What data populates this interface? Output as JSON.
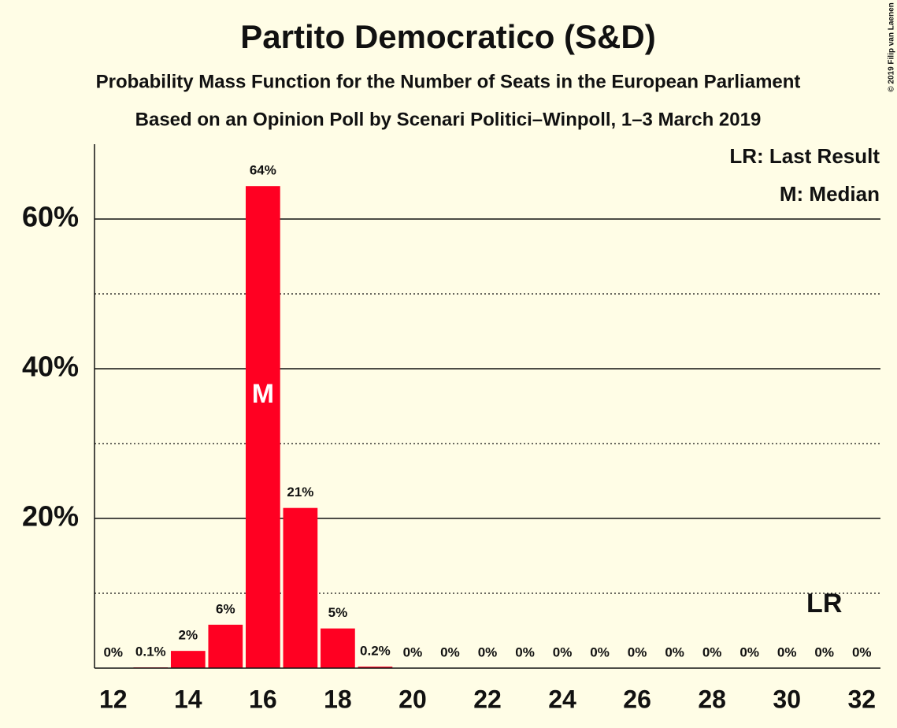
{
  "chart_data": {
    "type": "bar",
    "title": "Partito Democratico (S&D)",
    "subtitle": "Probability Mass Function for the Number of Seats in the European Parliament",
    "subtitle2": "Based on an Opinion Poll by Scenari Politici–Winpoll, 1–3 March 2019",
    "copyright": "© 2019 Filip van Laenen",
    "x": [
      12,
      13,
      14,
      15,
      16,
      17,
      18,
      19,
      20,
      21,
      22,
      23,
      24,
      25,
      26,
      27,
      28,
      29,
      30,
      31,
      32
    ],
    "values": [
      0,
      0.1,
      2.3,
      5.8,
      64.4,
      21.4,
      5.3,
      0.2,
      0,
      0,
      0,
      0,
      0,
      0,
      0,
      0,
      0,
      0,
      0,
      0,
      0
    ],
    "value_labels": [
      "0%",
      "0.1%",
      "2%",
      "6%",
      "64%",
      "21%",
      "5%",
      "0.2%",
      "0%",
      "0%",
      "0%",
      "0%",
      "0%",
      "0%",
      "0%",
      "0%",
      "0%",
      "0%",
      "0%",
      "0%",
      "0%"
    ],
    "color": "#ff0022",
    "xlim": [
      11.5,
      32.5
    ],
    "xticks": [
      12,
      14,
      16,
      18,
      20,
      22,
      24,
      26,
      28,
      30,
      32
    ],
    "ylim": [
      0,
      70
    ],
    "yticks": [
      {
        "value": 20,
        "label": "20%"
      },
      {
        "value": 40,
        "label": "40%"
      },
      {
        "value": 60,
        "label": "60%"
      }
    ],
    "minor_grid": [
      10,
      30,
      50
    ],
    "grid": true,
    "legend": [
      "LR: Last Result",
      "M: Median"
    ],
    "median": {
      "x": 16,
      "label": "M"
    },
    "last_result": {
      "x": 31,
      "label": "LR"
    }
  }
}
